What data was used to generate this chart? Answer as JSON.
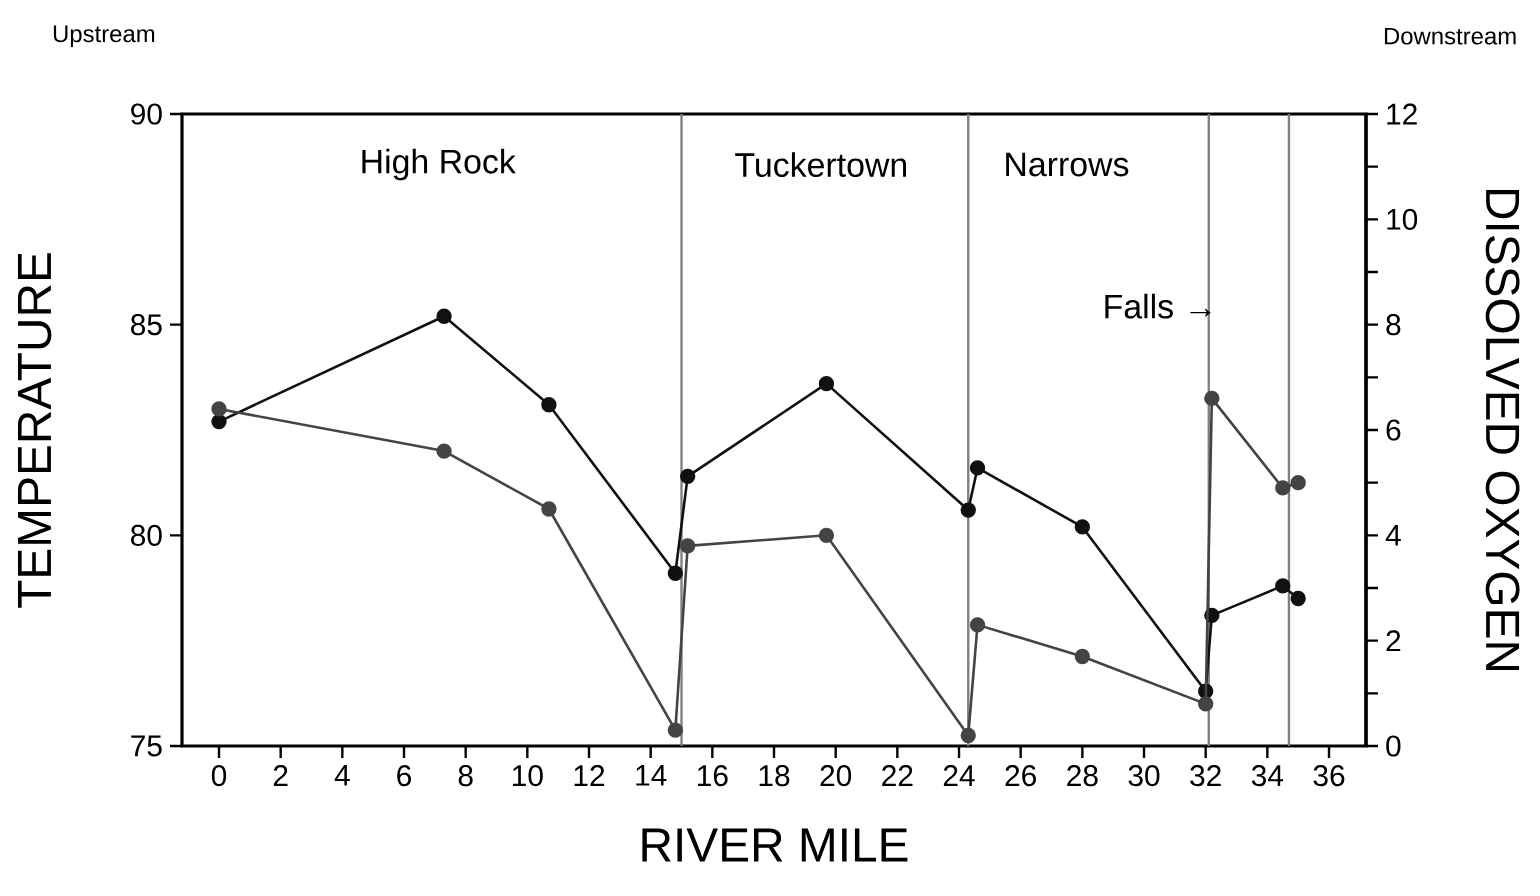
{
  "chart_data": {
    "type": "line",
    "xlabel": "RIVER MILE",
    "ylabel": "TEMPERATURE",
    "y2label": "DISSOLVED OXYGEN",
    "x": [
      0,
      7.3,
      10.7,
      14.8,
      15.2,
      19.7,
      24.3,
      24.6,
      28,
      32,
      32.2,
      34.5,
      35
    ],
    "series": [
      {
        "color": "#111111",
        "values": [
          82.7,
          85.2,
          83.1,
          79.1,
          81.4,
          83.6,
          80.6,
          81.6,
          80.2,
          76.3,
          78.1,
          78.8,
          78.5
        ]
      },
      {
        "color": "#444444",
        "axis": "y2",
        "values": [
          6.4,
          5.6,
          4.5,
          0.3,
          3.8,
          4.0,
          0.2,
          2.3,
          1.7,
          0.8,
          6.6,
          4.9,
          5.0
        ]
      }
    ],
    "xlim": [
      -1.2,
      37.2
    ],
    "xticks": [
      0,
      2,
      4,
      6,
      8,
      10,
      12,
      14,
      16,
      18,
      20,
      22,
      24,
      26,
      28,
      30,
      32,
      34,
      36
    ],
    "ylim": [
      75,
      90
    ],
    "yticks": [
      75,
      80,
      85,
      90
    ],
    "y2lim": [
      0,
      12
    ],
    "y2ticks": [
      0,
      {
        "value": 1,
        "label": null
      },
      2,
      {
        "value": 3,
        "label": null
      },
      4,
      {
        "value": 5,
        "label": null
      },
      6,
      {
        "value": 7,
        "label": null
      },
      8,
      {
        "value": 9,
        "label": null
      },
      10,
      {
        "value": 11,
        "label": null
      },
      12
    ],
    "ref_lines": [
      {
        "axis": "x",
        "value": 15.0,
        "color": "#808080"
      },
      {
        "axis": "x",
        "value": 24.3,
        "color": "#808080"
      },
      {
        "axis": "x",
        "value": 32.1,
        "color": "#808080"
      },
      {
        "axis": "x",
        "value": 34.7,
        "color": "#808080"
      }
    ],
    "annotations": [
      "Upstream",
      "Downstream",
      "High Rock",
      "Tuckertown",
      "Narrows",
      "Falls →"
    ],
    "marker": "circle",
    "line_style": "solid"
  }
}
